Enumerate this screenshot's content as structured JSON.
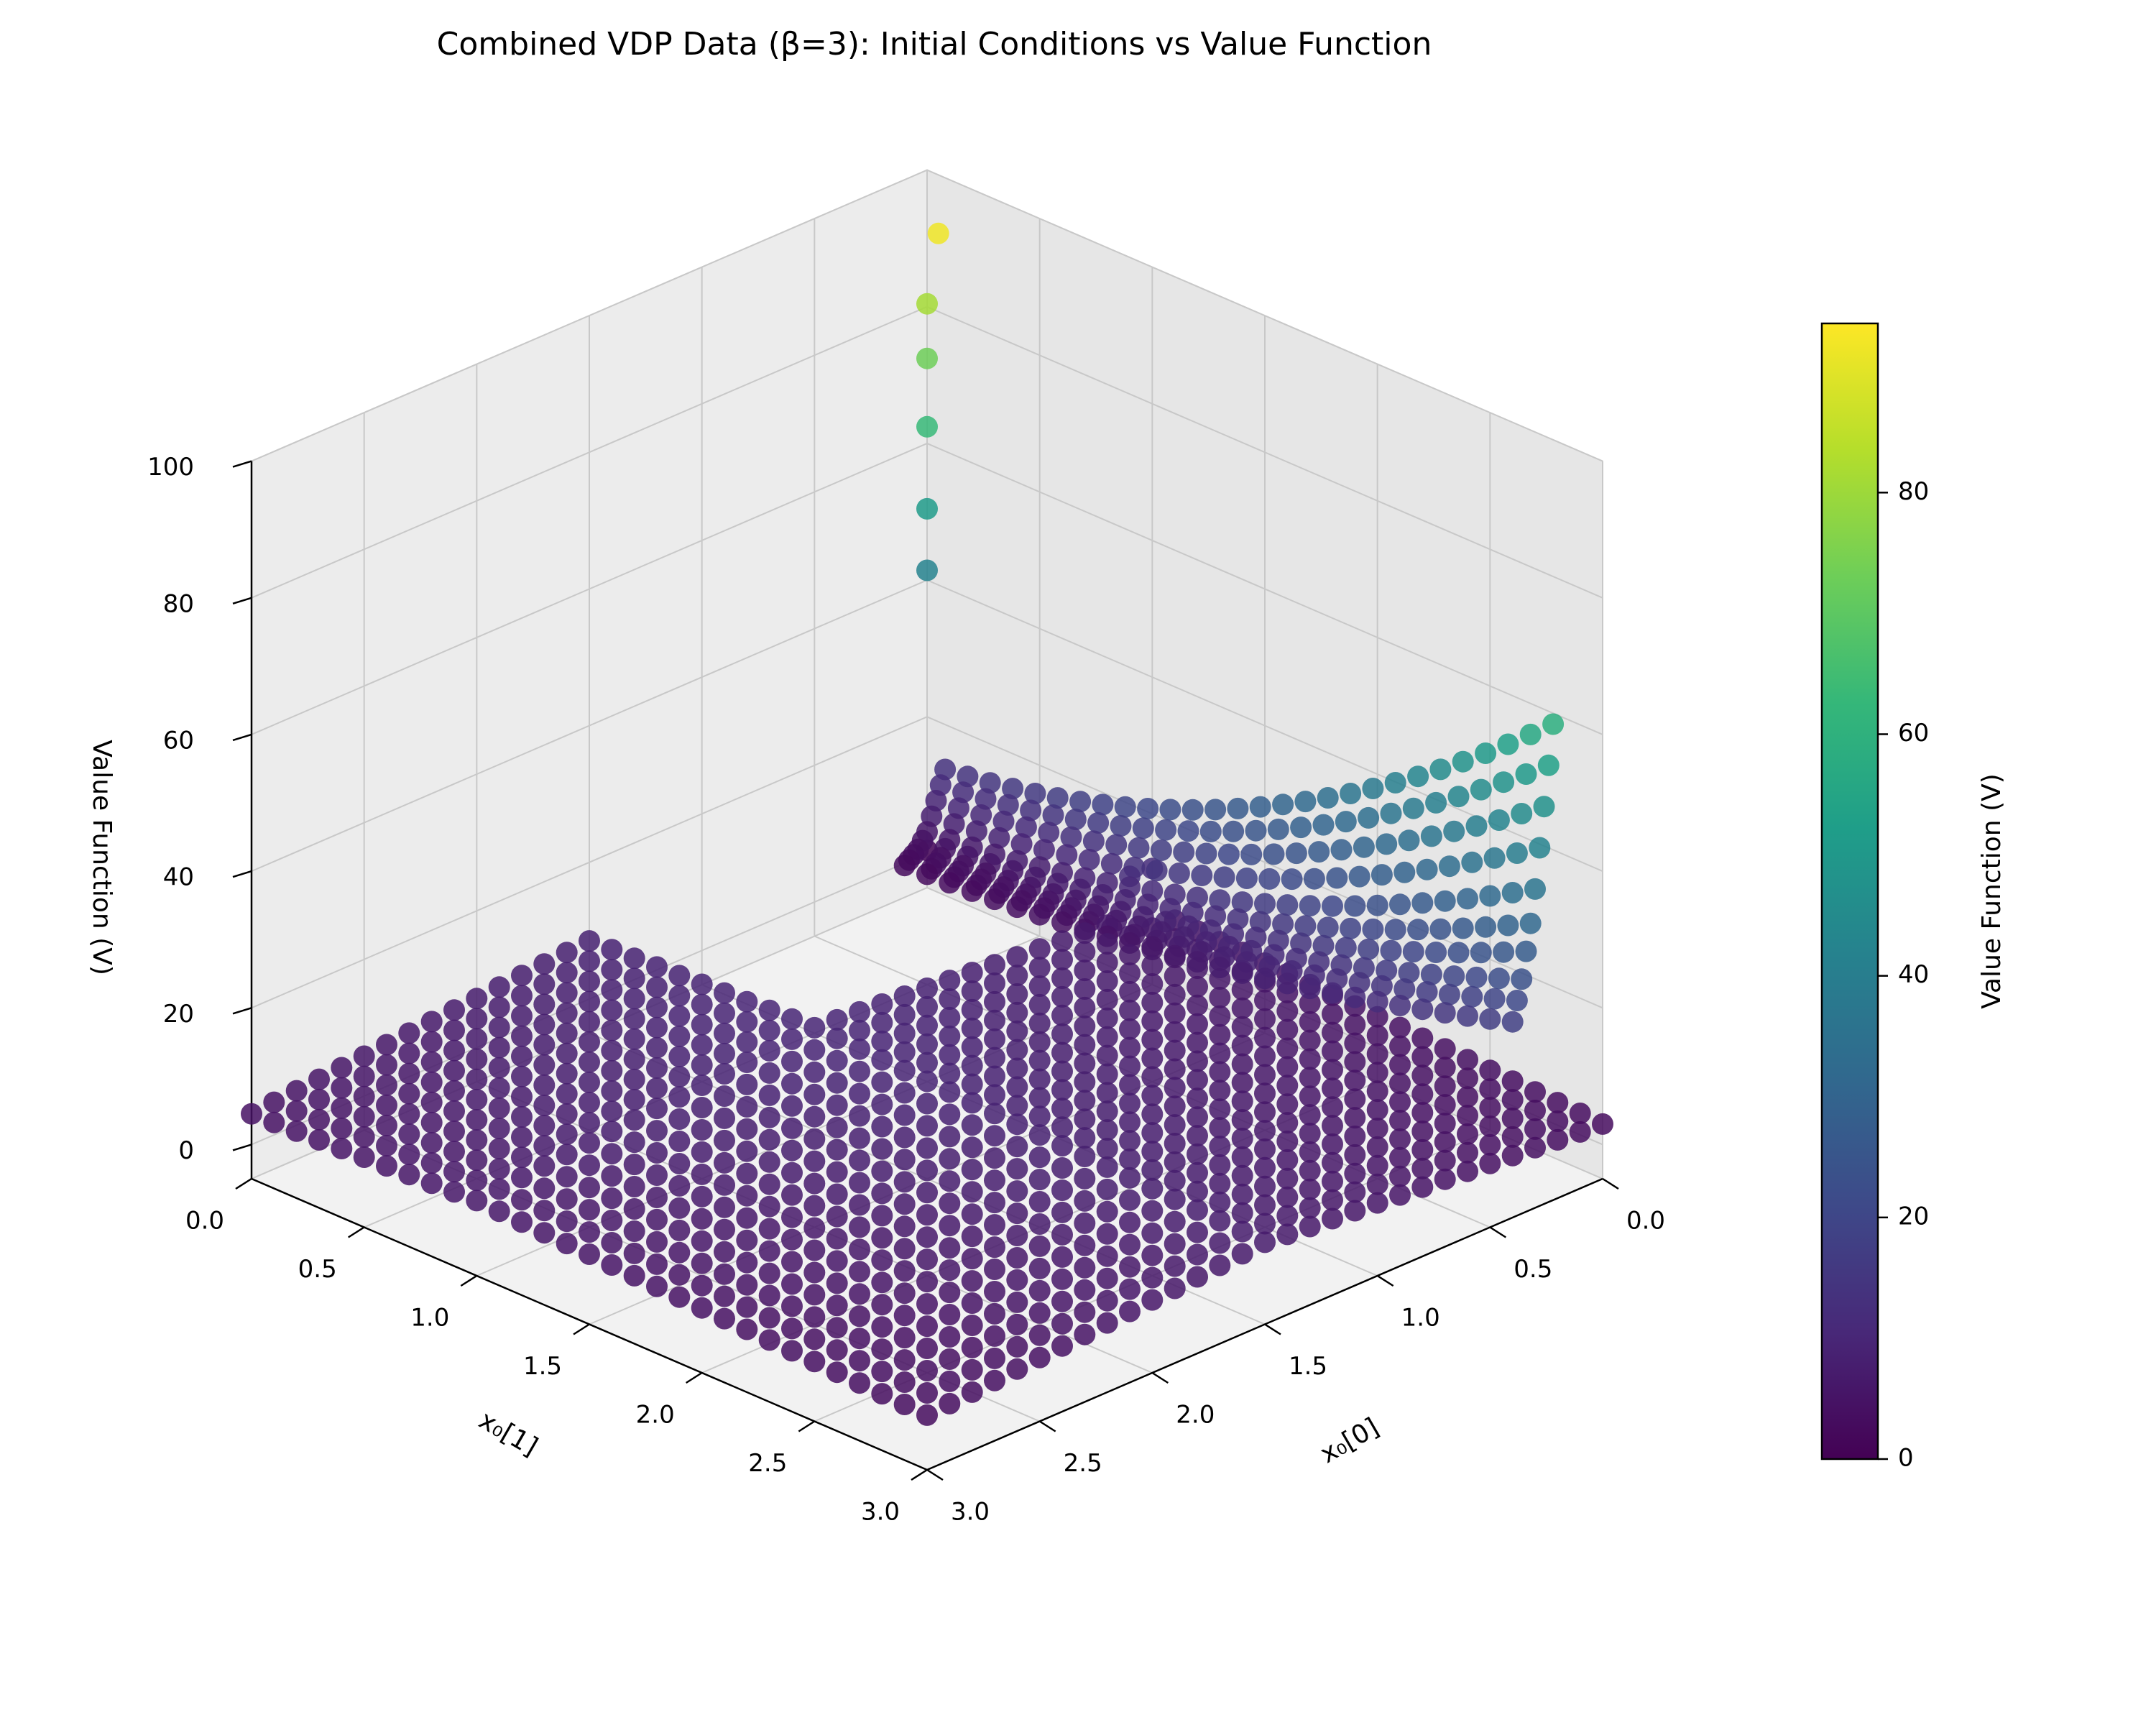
{
  "chart_data": {
    "type": "scatter",
    "projection": "3d",
    "title": "Combined VDP Data (β=3): Initial Conditions vs Value Function",
    "xlabel": "x₀[0]",
    "ylabel": "x₀[1]",
    "zlabel": "Value Function (V)",
    "xlim": [
      0,
      3
    ],
    "ylim": [
      0,
      3
    ],
    "zlim": [
      -5,
      100
    ],
    "x_ticks": [
      "0.0",
      "0.5",
      "1.0",
      "1.5",
      "2.0",
      "2.5",
      "3.0"
    ],
    "y_ticks": [
      "0.0",
      "0.5",
      "1.0",
      "1.5",
      "2.0",
      "2.5",
      "3.0"
    ],
    "z_ticks": [
      "0",
      "20",
      "40",
      "60",
      "80",
      "100"
    ],
    "grid": true,
    "colormap": "viridis",
    "colorbar": {
      "label": "Value Function (V)",
      "range": [
        0,
        94
      ],
      "ticks": [
        "0",
        "20",
        "40",
        "60",
        "80"
      ]
    },
    "viridis_stops": [
      "#440154",
      "#482878",
      "#3e4989",
      "#31688e",
      "#26828e",
      "#1f9e89",
      "#35b779",
      "#6ece58",
      "#b5de2b",
      "#fde725"
    ],
    "series": [
      {
        "description": "low region",
        "points": {
          "x0_0": [
            0,
            1.5
          ],
          "x0_1": [
            0,
            3
          ],
          "grid_step": 0.1,
          "V_formula_hint": "approximately 3 to 13, low near origin and rising toward the wall"
        },
        "strips": [
          {
            "x0_1": 0.1,
            "V_start": 14,
            "V_end": 62
          },
          {
            "x0_1": 0.2,
            "V_start": 12,
            "V_end": 56
          },
          {
            "x0_1": 0.3,
            "V_start": 10,
            "V_end": 50
          },
          {
            "x0_1": 0.4,
            "V_start": 8,
            "V_end": 44
          },
          {
            "x0_1": 0.5,
            "V_start": 6,
            "V_end": 38
          },
          {
            "x0_1": 0.6,
            "V_start": 5,
            "V_end": 33
          },
          {
            "x0_1": 0.7,
            "V_start": 4,
            "V_end": 29
          },
          {
            "x0_1": 0.8,
            "V_start": 3.5,
            "V_end": 25
          },
          {
            "x0_1": 0.9,
            "V_start": 3,
            "V_end": 22
          },
          {
            "x0_1": 1.0,
            "V_start": 2.5,
            "V_end": 19
          }
        ],
        "vertical_column": [
          {
            "x0_0": 0,
            "x0_1": 0,
            "V": 1
          },
          {
            "x0_0": 0,
            "x0_1": 0,
            "V": 42
          },
          {
            "x0_0": 0,
            "x0_1": 0,
            "V": 51
          },
          {
            "x0_0": 0,
            "x0_1": 0,
            "V": 63
          },
          {
            "x0_0": 0,
            "x0_1": 0,
            "V": 73
          },
          {
            "x0_0": 0,
            "x0_1": 0,
            "V": 81
          },
          {
            "x0_0": 0,
            "x0_1": 0,
            "V": 92
          }
        ]
      }
    ]
  }
}
